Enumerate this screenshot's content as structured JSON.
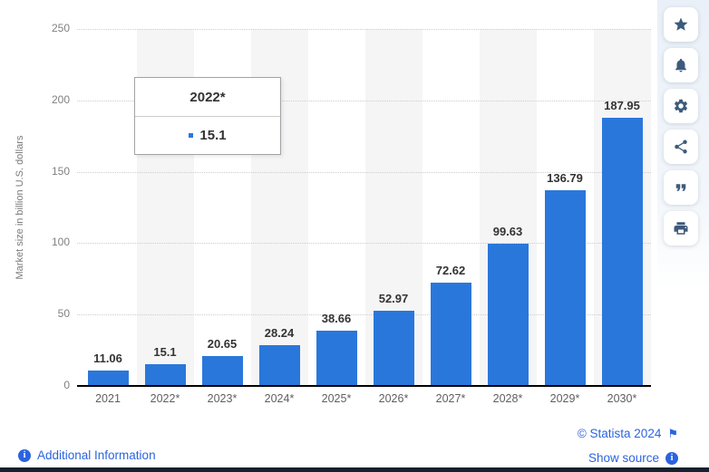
{
  "chart_data": {
    "type": "bar",
    "categories": [
      "2021",
      "2022*",
      "2023*",
      "2024*",
      "2025*",
      "2026*",
      "2027*",
      "2028*",
      "2029*",
      "2030*"
    ],
    "values": [
      11.06,
      15.1,
      20.65,
      28.24,
      38.66,
      52.97,
      72.62,
      99.63,
      136.79,
      187.95
    ],
    "title": "",
    "xlabel": "",
    "ylabel": "Market size in billion U.S. dollars",
    "ylim": [
      0,
      250
    ],
    "yticks": [
      0,
      50,
      100,
      150,
      200,
      250
    ],
    "grid": "horizontal-dotted",
    "legend": "none",
    "bar_color": "#2a77db",
    "striped_columns": [
      1,
      3,
      5,
      7,
      9
    ]
  },
  "tooltip": {
    "title": "2022*",
    "value": "15.1",
    "marker_color": "#2a77db"
  },
  "sidebar": {
    "icons": [
      "star",
      "bell",
      "gear",
      "share",
      "quote",
      "print"
    ]
  },
  "footer": {
    "additional_information": "Additional Information",
    "copyright": "© Statista 2024",
    "show_source": "Show source",
    "info_glyph": "i",
    "flag_glyph": "⚑"
  },
  "colors": {
    "bar": "#2a77db",
    "link": "#2b63e0",
    "icon": "#3d5a7c",
    "stripe": "#f5f5f6",
    "grid": "#cccccc"
  }
}
